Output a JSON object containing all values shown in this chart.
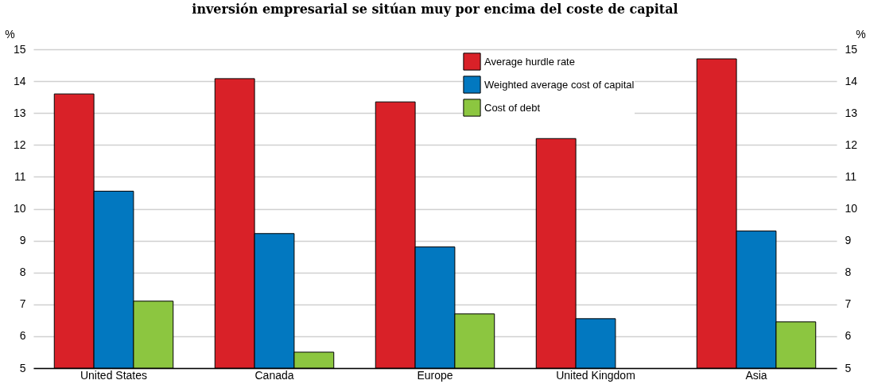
{
  "chart_data": {
    "type": "bar",
    "title": "inversión empresarial se sitúan muy por encima del coste de capital",
    "ylabel": "%",
    "y2label": "%",
    "categories": [
      "United States",
      "Canada",
      "Europe",
      "United Kingdom",
      "Asia"
    ],
    "series": [
      {
        "name": "Average hurdle rate",
        "color": "#d92128",
        "values": [
          13.6,
          14.08,
          13.35,
          12.2,
          14.7
        ]
      },
      {
        "name": "Weighted average cost of capital",
        "color": "#0278c0",
        "values": [
          10.55,
          9.22,
          8.8,
          6.55,
          9.3
        ]
      },
      {
        "name": "Cost of debt",
        "color": "#8cc640",
        "values": [
          7.1,
          5.5,
          6.7,
          null,
          6.45
        ]
      }
    ],
    "ylim": [
      5,
      15
    ],
    "yticks": [
      5,
      6,
      7,
      8,
      9,
      10,
      11,
      12,
      13,
      14,
      15
    ],
    "y2lim": [
      5,
      15
    ],
    "y2ticks": [
      5,
      6,
      7,
      8,
      9,
      10,
      11,
      12,
      13,
      14,
      15
    ],
    "grid": "y",
    "legend": "top"
  }
}
